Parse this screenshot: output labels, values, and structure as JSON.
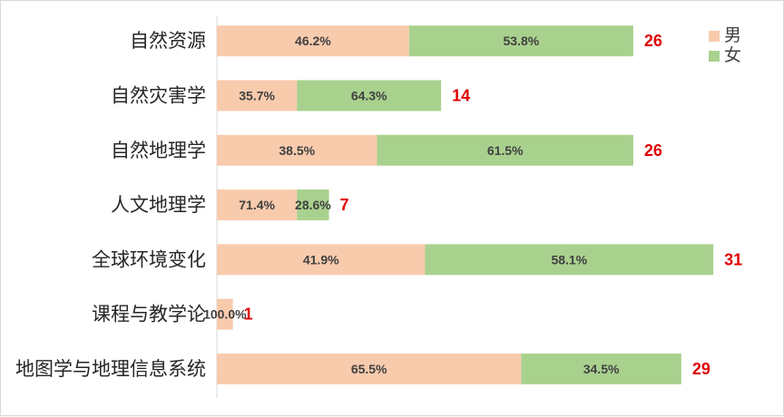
{
  "chart_data": {
    "type": "bar",
    "orientation": "horizontal",
    "stacked": true,
    "title": "",
    "xlabel": "",
    "ylabel": "",
    "categories": [
      "自然资源",
      "自然灾害学",
      "自然地理学",
      "人文地理学",
      "全球环境变化",
      "课程与教学论",
      "地图学与地理信息系统"
    ],
    "totals": [
      26,
      14,
      26,
      7,
      31,
      1,
      29
    ],
    "series": [
      {
        "name": "男",
        "color": "#f8cbad",
        "counts": [
          12,
          5,
          10,
          5,
          13,
          1,
          19
        ],
        "labels": [
          "46.2%",
          "35.7%",
          "38.5%",
          "71.4%",
          "41.9%",
          "100.0%",
          "65.5%"
        ]
      },
      {
        "name": "女",
        "color": "#a9d18e",
        "counts": [
          14,
          9,
          16,
          2,
          18,
          0,
          10
        ],
        "labels": [
          "53.8%",
          "64.3%",
          "61.5%",
          "28.6%",
          "58.1%",
          "",
          "34.5%"
        ]
      }
    ],
    "total_label_color": "#e00000",
    "xlim": [
      0,
      35
    ],
    "grid": false,
    "legend_position": "top-right"
  }
}
